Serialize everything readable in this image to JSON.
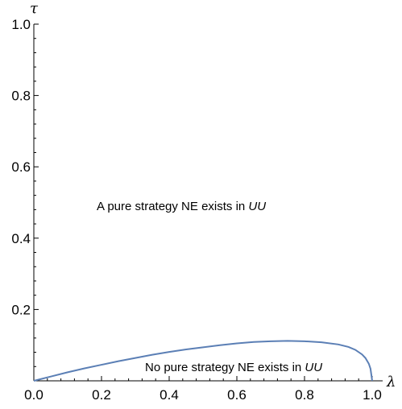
{
  "chart_data": {
    "type": "line",
    "xlabel": "λ",
    "ylabel": "τ",
    "xlim": [
      0,
      1
    ],
    "ylim": [
      0,
      1
    ],
    "x_ticks": [
      "0.0",
      "0.2",
      "0.4",
      "0.6",
      "0.8",
      "1.0"
    ],
    "y_ticks": [
      "0.2",
      "0.4",
      "0.6",
      "0.8",
      "1.0"
    ],
    "grid": false,
    "line_color": "#5b7fb5",
    "series": [
      {
        "x": [
          0.0,
          0.05,
          0.1,
          0.15,
          0.2,
          0.25,
          0.3,
          0.35,
          0.4,
          0.45,
          0.5,
          0.55,
          0.6,
          0.65,
          0.7,
          0.75,
          0.8,
          0.85,
          0.9,
          0.93,
          0.95,
          0.97,
          0.98,
          0.99,
          0.995,
          1.0
        ],
        "y": [
          0.0,
          0.012,
          0.024,
          0.035,
          0.045,
          0.055,
          0.064,
          0.073,
          0.081,
          0.088,
          0.094,
          0.1,
          0.105,
          0.109,
          0.111,
          0.112,
          0.111,
          0.108,
          0.102,
          0.095,
          0.087,
          0.074,
          0.064,
          0.048,
          0.034,
          0.0
        ]
      }
    ],
    "annotations": [
      {
        "text": "A pure strategy NE exists in ",
        "italic": "UU",
        "x": 0.35,
        "y": 0.5
      },
      {
        "text": "No pure strategy NE exists in ",
        "italic": "UU",
        "x": 0.63,
        "y": 0.035
      }
    ]
  }
}
